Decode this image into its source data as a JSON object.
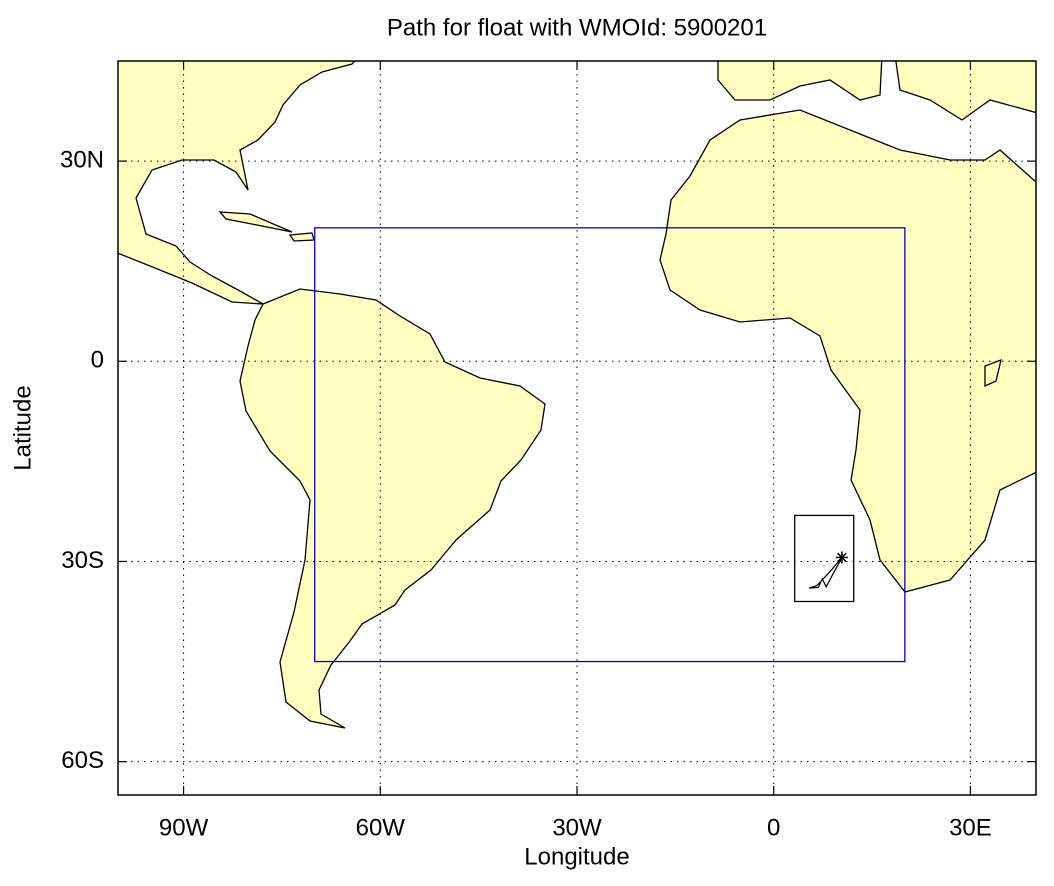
{
  "chart_data": {
    "type": "map",
    "title": "Path for float with WMOId: 5900201",
    "xlabel": "Longitude",
    "ylabel": "Latitude",
    "xlim": [
      -100,
      40
    ],
    "ylim": [
      -65,
      45
    ],
    "xticks": [
      {
        "value": -90,
        "label": "90W"
      },
      {
        "value": -60,
        "label": "60W"
      },
      {
        "value": -30,
        "label": "30W"
      },
      0,
      {
        "value": 30,
        "label": "30E"
      }
    ],
    "yticks": [
      {
        "value": 30,
        "label": "30N"
      },
      0,
      {
        "value": -30,
        "label": "30S"
      },
      {
        "value": -60,
        "label": "60S"
      }
    ],
    "grid": true,
    "land_color": "#ffffc0",
    "boxes": [
      {
        "lon": [
          -70,
          20
        ],
        "lat": [
          -45,
          20
        ],
        "color": "#0000cc"
      },
      {
        "lon": [
          3.2,
          12.2
        ],
        "lat": [
          -36,
          -23.1
        ],
        "color": "#000000"
      }
    ],
    "track": {
      "lon": [
        10.4,
        8.6,
        6.6,
        5.4,
        6.8,
        7.4,
        8.0,
        10.4
      ],
      "lat": [
        -29.4,
        -31.5,
        -33.6,
        -34.0,
        -33.9,
        -32.6,
        -33.8,
        -29.4
      ],
      "color": "#000000",
      "marker": "star"
    }
  }
}
